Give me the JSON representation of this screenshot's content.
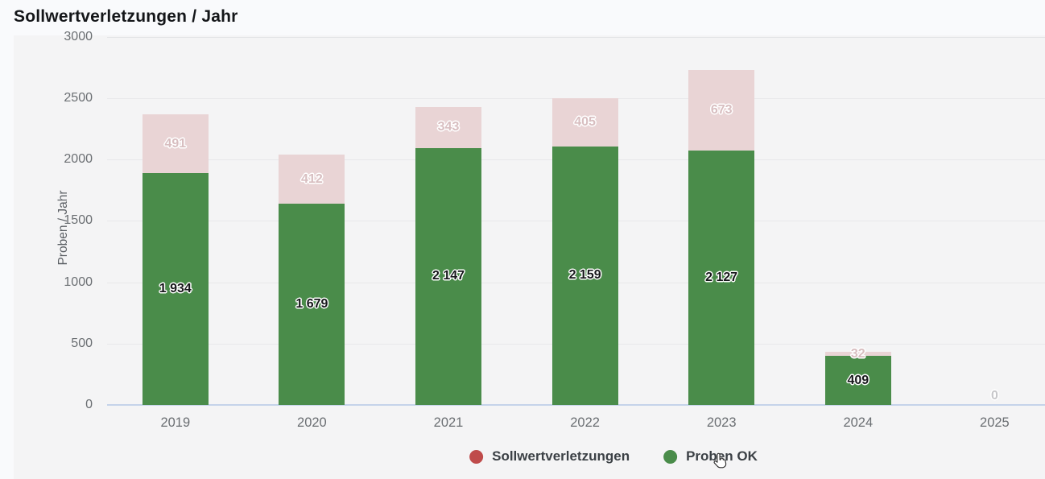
{
  "title": "Sollwertverletzungen / Jahr",
  "y_axis": {
    "title": "Proben / Jahr",
    "ticks": [
      "0",
      "500",
      "1000",
      "1500",
      "2000",
      "2500",
      "3000"
    ]
  },
  "x_axis": {
    "labels": [
      "2019",
      "2020",
      "2021",
      "2022",
      "2023",
      "2024",
      "2025"
    ]
  },
  "legend": {
    "items": [
      {
        "label": "Sollwertverletzungen",
        "dot_color": "#bf4b4b"
      },
      {
        "label": "Proben OK",
        "dot_color": "#4a8c4a"
      }
    ]
  },
  "chart_data": {
    "type": "bar",
    "stacked": true,
    "title": "Sollwertverletzungen / Jahr",
    "xlabel": "",
    "ylabel": "Proben / Jahr",
    "ylim": [
      0,
      3000
    ],
    "yticks": [
      0,
      500,
      1000,
      1500,
      2000,
      2500,
      3000
    ],
    "grid": true,
    "legend_position": "bottom",
    "categories": [
      "2019",
      "2020",
      "2021",
      "2022",
      "2023",
      "2024",
      "2025"
    ],
    "series": [
      {
        "name": "Sollwertverletzungen",
        "stack_index": 1,
        "bar_color": "#e9d4d5",
        "legend_color": "#bf4b4b",
        "values": [
          491,
          412,
          343,
          405,
          673,
          32,
          0
        ],
        "labels": [
          "491",
          "412",
          "343",
          "405",
          "673",
          "32",
          "0"
        ]
      },
      {
        "name": "Proben OK",
        "stack_index": 0,
        "bar_color": "#4a8c4a",
        "legend_color": "#4a8c4a",
        "values": [
          1934,
          1679,
          2147,
          2159,
          2127,
          409,
          0
        ],
        "labels": [
          "1 934",
          "1 679",
          "2 147",
          "2 159",
          "2 127",
          "409",
          ""
        ]
      }
    ]
  },
  "colors": {
    "page_bg": "#f9fafc",
    "panel_bg": "#f4f4f5",
    "gridline": "#e8e8ea",
    "zero_line": "#c5d3ea",
    "tick_text": "#6a6e72",
    "title_text": "#141619",
    "legend_text": "#3b4045"
  }
}
